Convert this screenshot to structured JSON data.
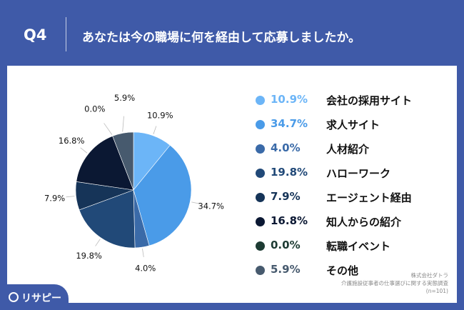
{
  "header": {
    "question_label": "Q4",
    "question_text": "あなたは今の職場に何を経由して応募しましたか。"
  },
  "chart_data": {
    "type": "pie",
    "slices": [
      {
        "label": "会社の採用サイト",
        "value": 10.9,
        "value_label": "10.9%",
        "color": "#6cb5f7"
      },
      {
        "label": "求人サイト",
        "value": 34.7,
        "value_label": "34.7%",
        "color": "#4a9be8"
      },
      {
        "label": "人材紹介",
        "value": 4.0,
        "value_label": "4.0%",
        "color": "#3a6aa8"
      },
      {
        "label": "ハローワーク",
        "value": 19.8,
        "value_label": "19.8%",
        "color": "#214978"
      },
      {
        "label": "エージェント経由",
        "value": 7.9,
        "value_label": "7.9%",
        "color": "#163458"
      },
      {
        "label": "知人からの紹介",
        "value": 16.8,
        "value_label": "16.8%",
        "color": "#0b1833"
      },
      {
        "label": "転職イベント",
        "value": 0.0,
        "value_label": "0.0%",
        "color": "#1d3b33"
      },
      {
        "label": "その他",
        "value": 5.9,
        "value_label": "5.9%",
        "color": "#475a6e"
      }
    ],
    "legend_position": "right"
  },
  "footer": {
    "line1": "株式会社ダトラ",
    "line2": "介護施設従事者の仕事選びに関する実態調査",
    "line3": "(n=101)"
  },
  "logo": {
    "text": "リサピー",
    "icon": "logo-mark-icon"
  }
}
